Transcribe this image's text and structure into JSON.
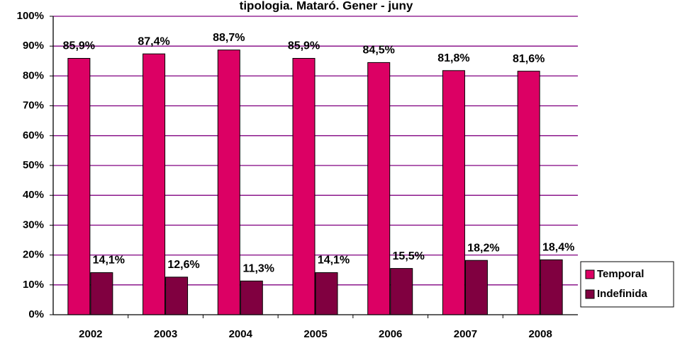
{
  "chart_data": {
    "type": "bar",
    "title": "tipologia. Mataró. Gener - juny",
    "categories": [
      "2002",
      "2003",
      "2004",
      "2005",
      "2006",
      "2007",
      "2008"
    ],
    "series": [
      {
        "name": "Temporal",
        "color": "#dc0064",
        "values": [
          85.9,
          87.4,
          88.7,
          85.9,
          84.5,
          81.8,
          81.6
        ],
        "value_labels": [
          "85,9%",
          "87,4%",
          "88,7%",
          "85,9%",
          "84,5%",
          "81,8%",
          "81,6%"
        ]
      },
      {
        "name": "Indefinida",
        "color": "#800040",
        "values": [
          14.1,
          12.6,
          11.3,
          14.1,
          15.5,
          18.2,
          18.4
        ],
        "value_labels": [
          "14,1%",
          "12,6%",
          "11,3%",
          "14,1%",
          "15,5%",
          "18,2%",
          "18,4%"
        ]
      }
    ],
    "ylim": [
      0,
      100
    ],
    "yticks": [
      {
        "value": 0,
        "label": "0%"
      },
      {
        "value": 10,
        "label": "10%"
      },
      {
        "value": 20,
        "label": "20%"
      },
      {
        "value": 30,
        "label": "30%"
      },
      {
        "value": 40,
        "label": "40%"
      },
      {
        "value": 50,
        "label": "50%"
      },
      {
        "value": 60,
        "label": "60%"
      },
      {
        "value": 70,
        "label": "70%"
      },
      {
        "value": 80,
        "label": "80%"
      },
      {
        "value": 90,
        "label": "90%"
      },
      {
        "value": 100,
        "label": "100%"
      }
    ],
    "grid": true,
    "legend": "right"
  }
}
